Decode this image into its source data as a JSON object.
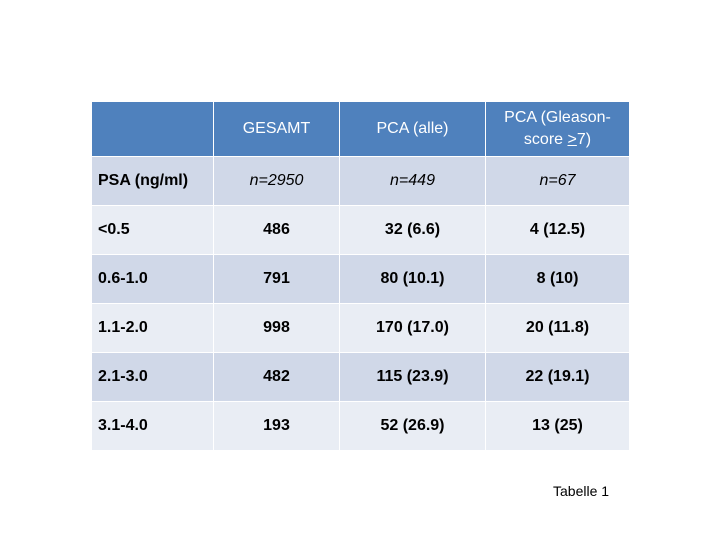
{
  "table": {
    "header": {
      "col1": "GESAMT",
      "col2": "PCA (alle)",
      "col3_line1": "PCA (Gleason-",
      "col3_line2_prefix": "score ",
      "col3_line2_symbol": ">",
      "col3_line2_suffix": "7)"
    },
    "rows": [
      {
        "label": "PSA (ng/ml)",
        "gesamt": "n=2950",
        "pca_alle": "n=449",
        "pca_gleason": "n=67"
      },
      {
        "label": "<0.5",
        "gesamt": "486",
        "pca_alle": "32 (6.6)",
        "pca_gleason": "4 (12.5)"
      },
      {
        "label": "0.6-1.0",
        "gesamt": "791",
        "pca_alle": "80 (10.1)",
        "pca_gleason": "8 (10)"
      },
      {
        "label": "1.1-2.0",
        "gesamt": "998",
        "pca_alle": "170 (17.0)",
        "pca_gleason": "20 (11.8)"
      },
      {
        "label": "2.1-3.0",
        "gesamt": "482",
        "pca_alle": "115 (23.9)",
        "pca_gleason": "22 (19.1)"
      },
      {
        "label": "3.1-4.0",
        "gesamt": "193",
        "pca_alle": "52 (26.9)",
        "pca_gleason": "13 (25)"
      }
    ]
  },
  "caption": "Tabelle 1",
  "colors": {
    "header_bg": "#4f81bd",
    "row_dark": "#d0d8e8",
    "row_light": "#e9edf4"
  }
}
